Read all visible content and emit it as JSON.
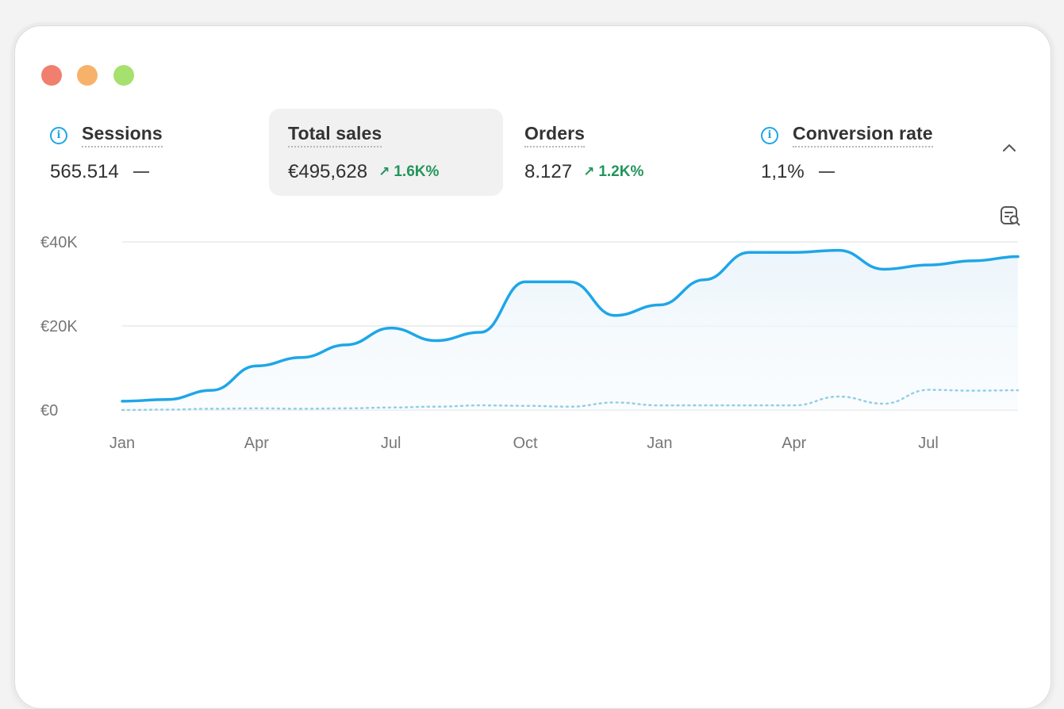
{
  "window": {
    "controls": [
      "close",
      "minimize",
      "maximize"
    ]
  },
  "metrics": [
    {
      "title": "Sessions",
      "value": "565.514",
      "delta": "",
      "info": true,
      "selected": false
    },
    {
      "title": "Total sales",
      "value": "€495,628",
      "delta": "1.6K%",
      "info": false,
      "selected": true
    },
    {
      "title": "Orders",
      "value": "8.127",
      "delta": "1.2K%",
      "info": false,
      "selected": false
    },
    {
      "title": "Conversion rate",
      "value": "1,1%",
      "delta": "",
      "info": true,
      "selected": false
    }
  ],
  "colors": {
    "primary_line": "#1ea6e8",
    "comparison_line": "#93cfea",
    "positive_delta": "#23945b",
    "info_icon": "#1ea6e8"
  },
  "icons": {
    "collapse": "chevron-up-icon",
    "explore": "chart-search-icon",
    "info": "info-icon",
    "trend_up": "arrow-up-right-icon"
  },
  "chart_data": {
    "type": "area",
    "x": [
      "Jan",
      "Feb",
      "Mar",
      "Apr",
      "May",
      "Jun",
      "Jul",
      "Aug",
      "Sep",
      "Oct",
      "Nov",
      "Dec",
      "Jan",
      "Feb",
      "Mar",
      "Apr",
      "May",
      "Jun",
      "Jul",
      "Aug",
      "Sep"
    ],
    "x_tick_labels": [
      "Jan",
      "Apr",
      "Jul",
      "Oct",
      "Jan",
      "Apr",
      "Jul"
    ],
    "y_tick_labels": [
      "€0",
      "€20K",
      "€40K"
    ],
    "ylim": [
      0,
      40000
    ],
    "grid": true,
    "series": [
      {
        "style": "solid",
        "fill": true,
        "values": [
          2100,
          2500,
          4700,
          10500,
          12500,
          15500,
          19500,
          16500,
          18500,
          30500,
          30500,
          22500,
          25000,
          31000,
          37500,
          37500,
          38000,
          33500,
          34500,
          35500,
          36500
        ]
      },
      {
        "style": "dotted",
        "fill": false,
        "values": [
          0,
          100,
          300,
          400,
          300,
          400,
          600,
          800,
          1100,
          1000,
          800,
          1800,
          1100,
          1100,
          1100,
          1100,
          3200,
          1500,
          4800,
          4600,
          4700
        ]
      }
    ]
  }
}
